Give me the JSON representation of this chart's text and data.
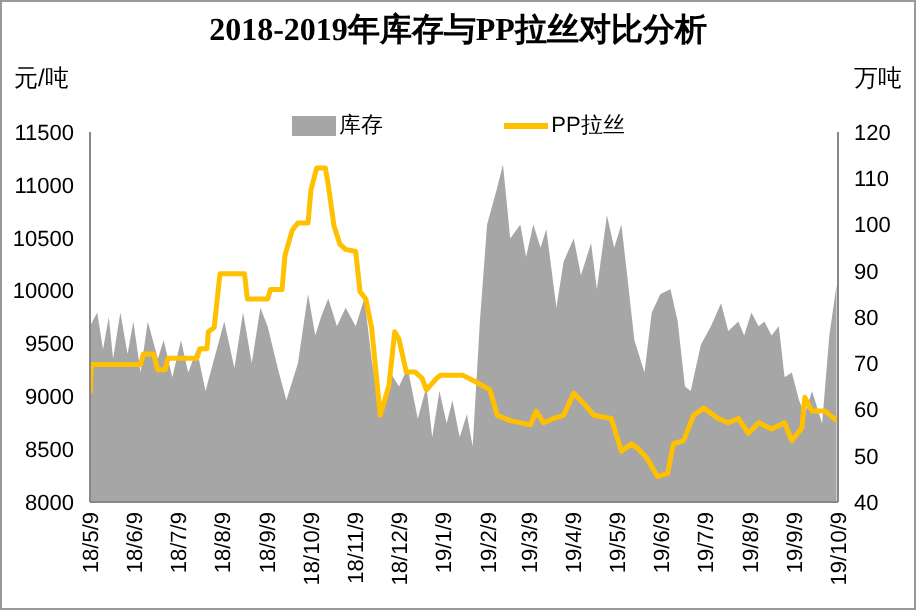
{
  "chart_data": {
    "type": "line",
    "title": "2018-2019年库存与PP拉丝对比分析",
    "ylabel": "元/吨",
    "y2label": "万吨",
    "legend": "top",
    "xlim": [
      "2018-05-09",
      "2019-10-09"
    ],
    "xticks": [
      {
        "value": "2018-05-09",
        "label": "18/5/9"
      },
      {
        "value": "2018-06-09",
        "label": "18/6/9"
      },
      {
        "value": "2018-07-09",
        "label": "18/7/9"
      },
      {
        "value": "2018-08-09",
        "label": "18/8/9"
      },
      {
        "value": "2018-09-09",
        "label": "18/9/9"
      },
      {
        "value": "2018-10-09",
        "label": "18/10/9"
      },
      {
        "value": "2018-11-09",
        "label": "18/11/9"
      },
      {
        "value": "2018-12-09",
        "label": "18/12/9"
      },
      {
        "value": "2019-01-09",
        "label": "19/1/9"
      },
      {
        "value": "2019-02-09",
        "label": "19/2/9"
      },
      {
        "value": "2019-03-09",
        "label": "19/3/9"
      },
      {
        "value": "2019-04-09",
        "label": "19/4/9"
      },
      {
        "value": "2019-05-09",
        "label": "19/5/9"
      },
      {
        "value": "2019-06-09",
        "label": "19/6/9"
      },
      {
        "value": "2019-07-09",
        "label": "19/7/9"
      },
      {
        "value": "2019-08-09",
        "label": "19/8/9"
      },
      {
        "value": "2019-09-09",
        "label": "19/9/9"
      },
      {
        "value": "2019-10-09",
        "label": "19/10/9"
      }
    ],
    "ylim": [
      8000,
      11500
    ],
    "yticks": [
      8000,
      8500,
      9000,
      9500,
      10000,
      10500,
      11000,
      11500
    ],
    "y2lim": [
      40,
      120
    ],
    "y2ticks": [
      40,
      50,
      60,
      70,
      80,
      90,
      100,
      110,
      120
    ],
    "series": [
      {
        "name": "库存",
        "type": "area",
        "axis": "y2",
        "color": "#a6a6a6",
        "x": [
          "2018-05-09",
          "2018-05-14",
          "2018-05-18",
          "2018-05-22",
          "2018-05-25",
          "2018-05-30",
          "2018-06-04",
          "2018-06-08",
          "2018-06-13",
          "2018-06-18",
          "2018-06-25",
          "2018-06-29",
          "2018-07-05",
          "2018-07-11",
          "2018-07-16",
          "2018-07-22",
          "2018-07-28",
          "2018-08-03",
          "2018-08-10",
          "2018-08-17",
          "2018-08-23",
          "2018-08-29",
          "2018-09-04",
          "2018-09-09",
          "2018-09-16",
          "2018-09-22",
          "2018-09-30",
          "2018-10-07",
          "2018-10-12",
          "2018-10-16",
          "2018-10-21",
          "2018-10-27",
          "2018-11-02",
          "2018-11-09",
          "2018-11-15",
          "2018-11-20",
          "2018-11-26",
          "2018-12-03",
          "2018-12-09",
          "2018-12-15",
          "2018-12-22",
          "2018-12-28",
          "2019-01-01",
          "2019-01-06",
          "2019-01-11",
          "2019-01-15",
          "2019-01-20",
          "2019-01-25",
          "2019-01-29",
          "2019-02-03",
          "2019-02-08",
          "2019-02-15",
          "2019-02-19",
          "2019-02-24",
          "2019-03-03",
          "2019-03-07",
          "2019-03-12",
          "2019-03-17",
          "2019-03-21",
          "2019-03-28",
          "2019-04-02",
          "2019-04-09",
          "2019-04-14",
          "2019-04-21",
          "2019-04-25",
          "2019-05-02",
          "2019-05-07",
          "2019-05-12",
          "2019-05-16",
          "2019-05-21",
          "2019-05-28",
          "2019-06-02",
          "2019-06-08",
          "2019-06-15",
          "2019-06-20",
          "2019-06-25",
          "2019-06-29",
          "2019-07-06",
          "2019-07-13",
          "2019-07-20",
          "2019-07-25",
          "2019-08-01",
          "2019-08-05",
          "2019-08-10",
          "2019-08-15",
          "2019-08-19",
          "2019-08-24",
          "2019-08-29",
          "2019-09-02",
          "2019-09-07",
          "2019-09-12",
          "2019-09-16",
          "2019-09-21",
          "2019-09-28",
          "2019-10-03",
          "2019-10-08"
        ],
        "values": [
          78,
          81,
          73,
          80,
          71,
          81,
          72,
          79,
          68,
          79,
          71,
          75,
          67,
          75,
          68,
          73,
          64,
          71,
          79,
          69,
          81,
          70,
          82,
          78,
          69,
          62,
          70,
          85,
          76,
          80,
          84,
          78,
          82,
          78,
          84,
          71,
          59,
          68,
          65,
          69,
          58,
          65,
          54,
          64,
          57,
          62,
          54,
          59,
          52,
          79,
          100,
          108,
          113,
          97,
          100,
          93,
          100,
          95,
          99,
          82,
          92,
          97,
          89,
          96,
          86,
          102,
          95,
          100,
          89,
          75,
          68,
          81,
          85,
          86,
          79,
          65,
          64,
          74,
          78,
          83,
          77,
          79,
          76,
          81,
          78,
          79,
          76,
          78,
          67,
          68,
          62,
          59,
          64,
          57,
          76,
          87
        ]
      },
      {
        "name": "PP拉丝",
        "axis": "y",
        "color": "#ffc000",
        "x": [
          "2018-05-09",
          "2018-05-10",
          "2018-06-13",
          "2018-06-15",
          "2018-06-22",
          "2018-06-25",
          "2018-06-30",
          "2018-07-02",
          "2018-07-22",
          "2018-07-24",
          "2018-07-29",
          "2018-07-30",
          "2018-08-03",
          "2018-08-07",
          "2018-08-24",
          "2018-08-26",
          "2018-09-09",
          "2018-09-11",
          "2018-09-19",
          "2018-09-21",
          "2018-09-26",
          "2018-09-30",
          "2018-10-07",
          "2018-10-09",
          "2018-10-13",
          "2018-10-19",
          "2018-10-21",
          "2018-10-25",
          "2018-10-29",
          "2018-11-02",
          "2018-11-09",
          "2018-11-12",
          "2018-11-16",
          "2018-11-20",
          "2018-11-26",
          "2018-12-02",
          "2018-12-06",
          "2018-12-09",
          "2018-12-14",
          "2018-12-20",
          "2018-12-25",
          "2018-12-28",
          "2019-01-04",
          "2019-01-07",
          "2019-01-22",
          "2019-02-01",
          "2019-02-10",
          "2019-02-15",
          "2019-02-24",
          "2019-03-10",
          "2019-03-14",
          "2019-03-19",
          "2019-03-26",
          "2019-04-02",
          "2019-04-09",
          "2019-04-16",
          "2019-04-23",
          "2019-05-05",
          "2019-05-12",
          "2019-05-19",
          "2019-05-23",
          "2019-05-30",
          "2019-06-06",
          "2019-06-13",
          "2019-06-17",
          "2019-06-24",
          "2019-07-01",
          "2019-07-08",
          "2019-07-18",
          "2019-07-25",
          "2019-08-01",
          "2019-08-08",
          "2019-08-15",
          "2019-08-24",
          "2019-09-02",
          "2019-09-07",
          "2019-09-14",
          "2019-09-16",
          "2019-09-21",
          "2019-09-30",
          "2019-10-08"
        ],
        "values": [
          9030,
          9300,
          9300,
          9400,
          9400,
          9250,
          9250,
          9360,
          9360,
          9450,
          9450,
          9610,
          9650,
          10160,
          10160,
          9920,
          9920,
          10010,
          10010,
          10330,
          10570,
          10640,
          10640,
          10950,
          11160,
          11160,
          11000,
          10610,
          10440,
          10390,
          10370,
          9990,
          9920,
          9650,
          8820,
          9100,
          9610,
          9540,
          9230,
          9230,
          9170,
          9060,
          9170,
          9200,
          9200,
          9130,
          9060,
          8820,
          8770,
          8730,
          8860,
          8750,
          8790,
          8820,
          9030,
          8930,
          8820,
          8790,
          8480,
          8550,
          8510,
          8410,
          8240,
          8270,
          8550,
          8580,
          8820,
          8890,
          8790,
          8750,
          8790,
          8650,
          8750,
          8690,
          8750,
          8580,
          8700,
          8990,
          8860,
          8860,
          8770
        ]
      }
    ]
  }
}
